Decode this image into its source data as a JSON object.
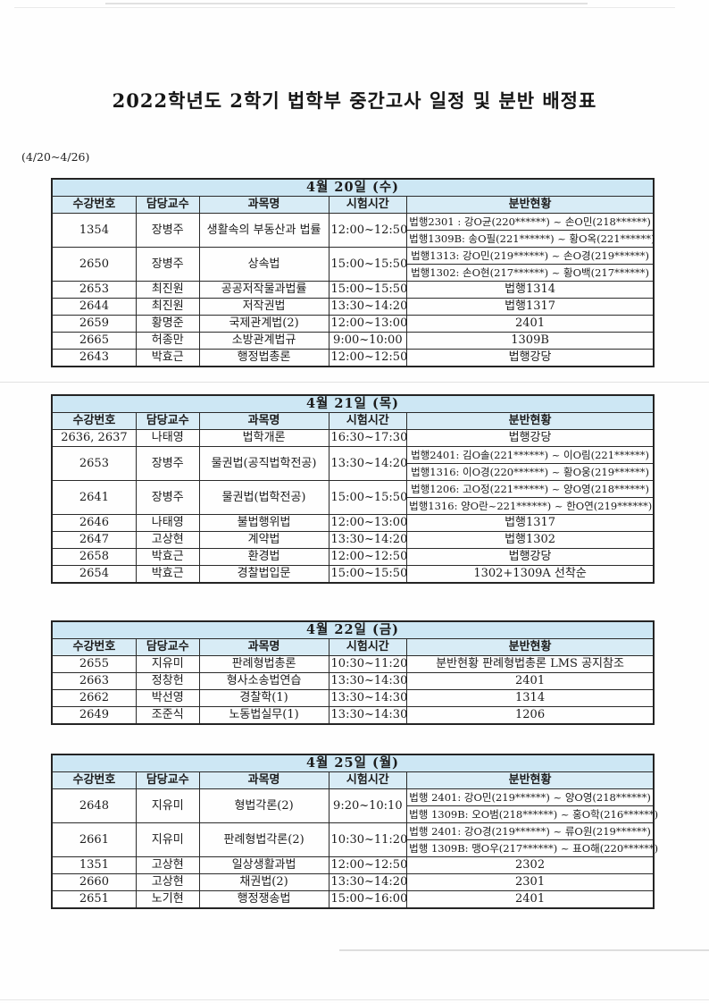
{
  "page": {
    "title": "2022학년도 2학기 법학부 중간고사 일정 및 분반 배정표",
    "date_range": "(4/20~4/26)"
  },
  "columns": [
    "수강번호",
    "담당교수",
    "과목명",
    "시험시간",
    "분반현황"
  ],
  "tables": [
    {
      "date": "4월 20일 (수)",
      "rows": [
        {
          "course_no": "1354",
          "professor": "장병주",
          "subject": "생활속의 부동산과 법률",
          "time": "12:00~12:50",
          "sections": [
            "법행2301 : 강O균(220******) ~ 손O민(218******)",
            "법행1309B: 송O필(221******) ~ 황O옥(221******)"
          ]
        },
        {
          "course_no": "2650",
          "professor": "장병주",
          "subject": "상속법",
          "time": "15:00~15:50",
          "sections": [
            "법행1313:  강O민(219******) ~ 손O경(219******)",
            "법행1302:  손O현(217******) ~ 황O백(217******)"
          ]
        },
        {
          "course_no": "2653",
          "professor": "최진원",
          "subject": "공공저작물과법률",
          "time": "15:00~15:50",
          "sections": [
            "법행1314"
          ]
        },
        {
          "course_no": "2644",
          "professor": "최진원",
          "subject": "저작권법",
          "time": "13:30~14:20",
          "sections": [
            "법행1317"
          ]
        },
        {
          "course_no": "2659",
          "professor": "황명준",
          "subject": "국제관계법(2)",
          "time": "12:00~13:00",
          "sections": [
            "2401"
          ]
        },
        {
          "course_no": "2665",
          "professor": "허종만",
          "subject": "소방관계법규",
          "time": "9:00~10:00",
          "sections": [
            "1309B"
          ]
        },
        {
          "course_no": "2643",
          "professor": "박효근",
          "subject": "행정법총론",
          "time": "12:00~12:50",
          "sections": [
            "법행강당"
          ]
        }
      ]
    },
    {
      "date": "4월 21일 (목)",
      "rows": [
        {
          "course_no": "2636, 2637",
          "professor": "나태영",
          "subject": "법학개론",
          "time": "16:30~17:30",
          "sections": [
            "법행강당"
          ]
        },
        {
          "course_no": "2653",
          "professor": "장병주",
          "subject": "물권법(공직법학전공)",
          "time": "13:30~14:20",
          "sections": [
            "법행2401: 김O솔(221******) ~ 이O림(221******)",
            "법행1316: 이O경(220******) ~ 황O웅(219******)"
          ]
        },
        {
          "course_no": "2641",
          "professor": "장병주",
          "subject": "물권법(법학전공)",
          "time": "15:00~15:50",
          "sections": [
            "법행1206: 고O정(221******) ~ 양O영(218******)",
            "법행1316: 양O란~221******) ~ 한O연(219******)"
          ]
        },
        {
          "course_no": "2646",
          "professor": "나태영",
          "subject": "불법행위법",
          "time": "12:00~13:00",
          "sections": [
            "법행1317"
          ]
        },
        {
          "course_no": "2647",
          "professor": "고상현",
          "subject": "계약법",
          "time": "13:30~14:20",
          "sections": [
            "법행1302"
          ]
        },
        {
          "course_no": "2658",
          "professor": "박효근",
          "subject": "환경법",
          "time": "12:00~12:50",
          "sections": [
            "법행강당"
          ]
        },
        {
          "course_no": "2654",
          "professor": "박효근",
          "subject": "경찰법입문",
          "time": "15:00~15:50",
          "sections": [
            "1302+1309A 선착순"
          ]
        }
      ]
    },
    {
      "date": "4월 22일 (금)",
      "rows": [
        {
          "course_no": "2655",
          "professor": "지유미",
          "subject": "판례형법총론",
          "time": "10:30~11:20",
          "sections": [
            "분반현황 판례형법총론 LMS 공지참조"
          ]
        },
        {
          "course_no": "2663",
          "professor": "정창헌",
          "subject": "형사소송법연습",
          "time": "13:30~14:30",
          "sections": [
            "2401"
          ]
        },
        {
          "course_no": "2662",
          "professor": "박선영",
          "subject": "경찰학(1)",
          "time": "13:30~14:30",
          "sections": [
            "1314"
          ]
        },
        {
          "course_no": "2649",
          "professor": "조준식",
          "subject": "노동법실무(1)",
          "time": "13:30~14:30",
          "sections": [
            "1206"
          ]
        }
      ]
    },
    {
      "date": "4월 25일 (월)",
      "rows": [
        {
          "course_no": "2648",
          "professor": "지유미",
          "subject": "형법각론(2)",
          "time": "9:20~10:10",
          "sections": [
            "법행 2401: 강O민(219******) ~ 양O영(218******)",
            "법행 1309B: 오O범(218******) ~ 홍O학(216******)"
          ]
        },
        {
          "course_no": "2661",
          "professor": "지유미",
          "subject": "판례형법각론(2)",
          "time": "10:30~11:20",
          "sections": [
            "법행 2401: 강O경(219******) ~ 류O원(219******)",
            "법행 1309B: 맹O우(217******) ~ 표O해(220******)"
          ]
        },
        {
          "course_no": "1351",
          "professor": "고상현",
          "subject": "일상생활과법",
          "time": "12:00~12:50",
          "sections": [
            "2302"
          ]
        },
        {
          "course_no": "2660",
          "professor": "고상현",
          "subject": "채권법(2)",
          "time": "13:30~14:20",
          "sections": [
            "2301"
          ]
        },
        {
          "course_no": "2651",
          "professor": "노기현",
          "subject": "행정쟁송법",
          "time": "15:00~16:00",
          "sections": [
            "2401"
          ]
        }
      ]
    }
  ],
  "colors": {
    "header_bg": "#d8ecf6",
    "date_header_bg": "#cde7f4",
    "border": "#2b2b2b",
    "text": "#1c1c1c"
  }
}
